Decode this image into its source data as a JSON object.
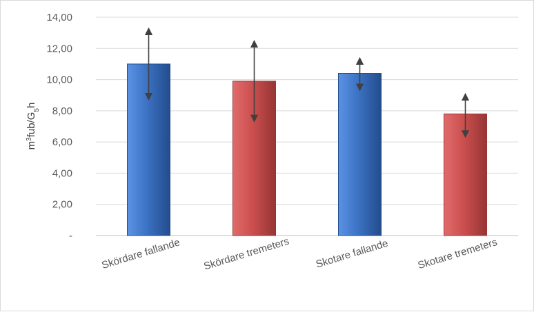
{
  "chart_data": {
    "type": "bar",
    "title": "",
    "xlabel": "",
    "ylabel": {
      "base": "m",
      "sup": "3",
      "mid": "fub/G",
      "sub": "5",
      "end": "h"
    },
    "ylim": [
      0,
      14
    ],
    "ytick_values": [
      0,
      2,
      4,
      6,
      8,
      10,
      12,
      14
    ],
    "ytick_labels": [
      "-",
      "2,00",
      "4,00",
      "6,00",
      "8,00",
      "10,00",
      "12,00",
      "14,00"
    ],
    "grid": true,
    "legend": "none",
    "categories": [
      "Skördare fallande",
      "Skördare tremeters",
      "Skotare fallande",
      "Skotare tremeters"
    ],
    "values": [
      11.0,
      9.9,
      10.4,
      7.8
    ],
    "error_bars": [
      {
        "low": 8.9,
        "high": 13.1
      },
      {
        "low": 7.5,
        "high": 12.3
      },
      {
        "low": 9.5,
        "high": 11.2
      },
      {
        "low": 6.5,
        "high": 8.9
      }
    ],
    "bar_colors": [
      "#3c73c4",
      "#cc4f4f",
      "#3c73c4",
      "#cc4f4f"
    ]
  },
  "colors": {
    "blue_light": "#5b92e3",
    "blue_dark": "#234c8c",
    "red_light": "#e06b6b",
    "red_dark": "#973535",
    "grid": "#d9d9d9",
    "axis": "#bfbfbf",
    "arrow": "#404040"
  }
}
